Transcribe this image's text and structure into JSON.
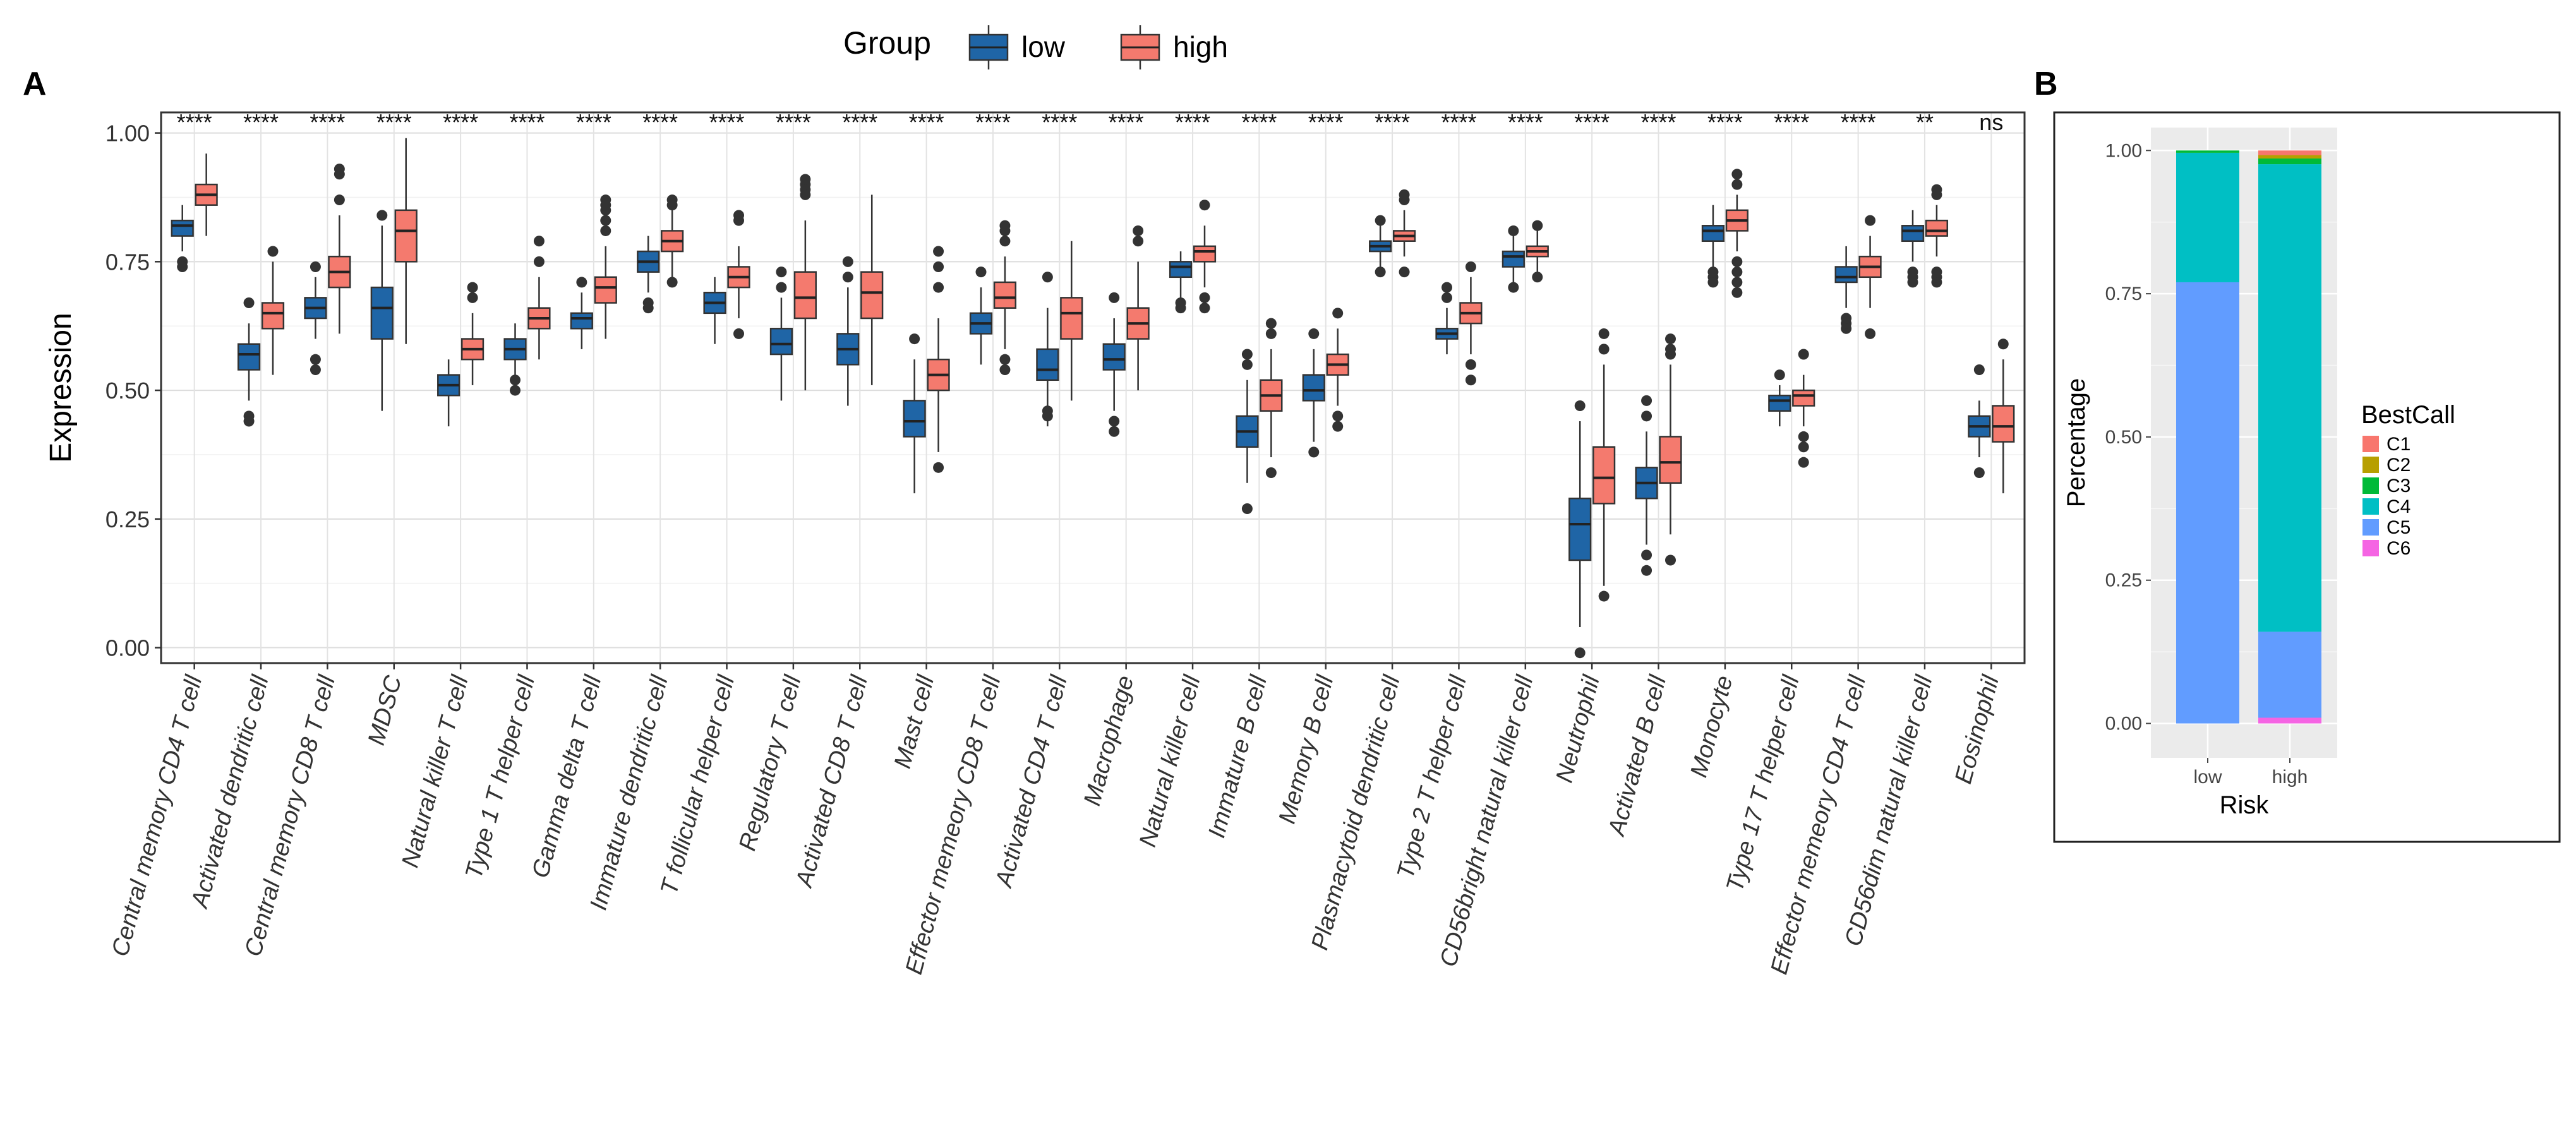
{
  "panels": {
    "a_label": "A",
    "b_label": "B"
  },
  "chart_data": [
    {
      "type": "boxplot",
      "panel": "A",
      "ylabel": "Expression",
      "xlabel": "",
      "ylim": [
        -0.03,
        1.04
      ],
      "yticks": [
        0.0,
        0.25,
        0.5,
        0.75,
        1.0
      ],
      "ytick_labels": [
        "0.00",
        "0.25",
        "0.50",
        "0.75",
        "1.00"
      ],
      "grid": true,
      "legend": {
        "title": "Group",
        "position": "top",
        "entries": [
          {
            "name": "low",
            "color": "#1f65a6"
          },
          {
            "name": "high",
            "color": "#f47a6e"
          }
        ]
      },
      "categories": [
        "Central memory CD4 T cell",
        "Activated dendritic cell",
        "Central memory CD8 T cell",
        "MDSC",
        "Natural killer T cell",
        "Type 1 T helper cell",
        "Gamma delta T cell",
        "Immature dendritic cell",
        "T follicular helper cell",
        "Regulatory T cell",
        "Activated CD8 T cell",
        "Mast cell",
        "Effector memeory CD8 T cell",
        "Activated CD4 T cell",
        "Macrophage",
        "Natural killer cell",
        "Immature  B cell",
        "Memory B cell",
        "Plasmacytoid dendritic cell",
        "Type 2 T helper cell",
        "CD56bright natural killer cell",
        "Neutrophil",
        "Activated B cell",
        "Monocyte",
        "Type 17 T helper cell",
        "Effector memeory CD4 T cell",
        "CD56dim natural killer cell",
        "Eosinophil"
      ],
      "significance": [
        "****",
        "****",
        "****",
        "****",
        "****",
        "****",
        "****",
        "****",
        "****",
        "****",
        "****",
        "****",
        "****",
        "****",
        "****",
        "****",
        "****",
        "****",
        "****",
        "****",
        "****",
        "****",
        "****",
        "****",
        "****",
        "****",
        "**",
        "ns"
      ],
      "series": [
        {
          "name": "low",
          "boxes": [
            {
              "q1": 0.8,
              "median": 0.82,
              "q3": 0.83,
              "wl": 0.77,
              "wh": 0.86,
              "out": [
                0.75,
                0.74
              ]
            },
            {
              "q1": 0.54,
              "median": 0.57,
              "q3": 0.59,
              "wl": 0.48,
              "wh": 0.63,
              "out": [
                0.44,
                0.45,
                0.67
              ]
            },
            {
              "q1": 0.64,
              "median": 0.66,
              "q3": 0.68,
              "wl": 0.6,
              "wh": 0.72,
              "out": [
                0.54,
                0.56,
                0.74
              ]
            },
            {
              "q1": 0.6,
              "median": 0.66,
              "q3": 0.7,
              "wl": 0.46,
              "wh": 0.82,
              "out": [
                0.84
              ]
            },
            {
              "q1": 0.49,
              "median": 0.51,
              "q3": 0.53,
              "wl": 0.43,
              "wh": 0.56,
              "out": []
            },
            {
              "q1": 0.56,
              "median": 0.58,
              "q3": 0.6,
              "wl": 0.51,
              "wh": 0.63,
              "out": [
                0.5,
                0.52
              ]
            },
            {
              "q1": 0.62,
              "median": 0.64,
              "q3": 0.65,
              "wl": 0.58,
              "wh": 0.69,
              "out": [
                0.71
              ]
            },
            {
              "q1": 0.73,
              "median": 0.75,
              "q3": 0.77,
              "wl": 0.69,
              "wh": 0.8,
              "out": [
                0.67,
                0.66
              ]
            },
            {
              "q1": 0.65,
              "median": 0.67,
              "q3": 0.69,
              "wl": 0.59,
              "wh": 0.72,
              "out": []
            },
            {
              "q1": 0.57,
              "median": 0.59,
              "q3": 0.62,
              "wl": 0.48,
              "wh": 0.68,
              "out": [
                0.7,
                0.73
              ]
            },
            {
              "q1": 0.55,
              "median": 0.58,
              "q3": 0.61,
              "wl": 0.47,
              "wh": 0.7,
              "out": [
                0.72,
                0.75
              ]
            },
            {
              "q1": 0.41,
              "median": 0.44,
              "q3": 0.48,
              "wl": 0.3,
              "wh": 0.56,
              "out": [
                0.6
              ]
            },
            {
              "q1": 0.61,
              "median": 0.63,
              "q3": 0.65,
              "wl": 0.55,
              "wh": 0.7,
              "out": [
                0.73
              ]
            },
            {
              "q1": 0.52,
              "median": 0.54,
              "q3": 0.58,
              "wl": 0.43,
              "wh": 0.66,
              "out": [
                0.46,
                0.45,
                0.72
              ]
            },
            {
              "q1": 0.54,
              "median": 0.56,
              "q3": 0.59,
              "wl": 0.46,
              "wh": 0.64,
              "out": [
                0.68,
                0.44,
                0.42
              ]
            },
            {
              "q1": 0.72,
              "median": 0.74,
              "q3": 0.75,
              "wl": 0.68,
              "wh": 0.77,
              "out": [
                0.66,
                0.67
              ]
            },
            {
              "q1": 0.39,
              "median": 0.42,
              "q3": 0.45,
              "wl": 0.32,
              "wh": 0.52,
              "out": [
                0.55,
                0.57,
                0.27
              ]
            },
            {
              "q1": 0.48,
              "median": 0.5,
              "q3": 0.53,
              "wl": 0.4,
              "wh": 0.58,
              "out": [
                0.61,
                0.38
              ]
            },
            {
              "q1": 0.77,
              "median": 0.78,
              "q3": 0.79,
              "wl": 0.74,
              "wh": 0.82,
              "out": [
                0.83,
                0.73
              ]
            },
            {
              "q1": 0.6,
              "median": 0.61,
              "q3": 0.62,
              "wl": 0.57,
              "wh": 0.66,
              "out": [
                0.68,
                0.7
              ]
            },
            {
              "q1": 0.74,
              "median": 0.76,
              "q3": 0.77,
              "wl": 0.71,
              "wh": 0.8,
              "out": [
                0.7,
                0.81
              ]
            },
            {
              "q1": 0.17,
              "median": 0.24,
              "q3": 0.29,
              "wl": 0.04,
              "wh": 0.44,
              "out": [
                0.47,
                -0.01
              ]
            },
            {
              "q1": 0.29,
              "median": 0.32,
              "q3": 0.35,
              "wl": 0.2,
              "wh": 0.42,
              "out": [
                0.15,
                0.18,
                0.45,
                0.48
              ]
            },
            {
              "q1": 0.79,
              "median": 0.81,
              "q3": 0.82,
              "wl": 0.74,
              "wh": 0.86,
              "out": [
                0.72,
                0.71,
                0.73
              ]
            },
            {
              "q1": 0.46,
              "median": 0.48,
              "q3": 0.49,
              "wl": 0.43,
              "wh": 0.51,
              "out": [
                0.53
              ]
            },
            {
              "q1": 0.71,
              "median": 0.72,
              "q3": 0.74,
              "wl": 0.66,
              "wh": 0.78,
              "out": [
                0.62,
                0.63,
                0.64
              ]
            },
            {
              "q1": 0.79,
              "median": 0.81,
              "q3": 0.82,
              "wl": 0.75,
              "wh": 0.85,
              "out": [
                0.71,
                0.72,
                0.73
              ]
            },
            {
              "q1": 0.41,
              "median": 0.43,
              "q3": 0.45,
              "wl": 0.37,
              "wh": 0.48,
              "out": [
                0.34,
                0.54
              ]
            }
          ]
        },
        {
          "name": "high",
          "boxes": [
            {
              "q1": 0.86,
              "median": 0.88,
              "q3": 0.9,
              "wl": 0.8,
              "wh": 0.96,
              "out": []
            },
            {
              "q1": 0.62,
              "median": 0.65,
              "q3": 0.67,
              "wl": 0.53,
              "wh": 0.75,
              "out": [
                0.77
              ]
            },
            {
              "q1": 0.7,
              "median": 0.73,
              "q3": 0.76,
              "wl": 0.61,
              "wh": 0.84,
              "out": [
                0.87,
                0.92,
                0.93
              ]
            },
            {
              "q1": 0.75,
              "median": 0.81,
              "q3": 0.85,
              "wl": 0.59,
              "wh": 0.99,
              "out": []
            },
            {
              "q1": 0.56,
              "median": 0.58,
              "q3": 0.6,
              "wl": 0.51,
              "wh": 0.65,
              "out": [
                0.68,
                0.7
              ]
            },
            {
              "q1": 0.62,
              "median": 0.64,
              "q3": 0.66,
              "wl": 0.56,
              "wh": 0.72,
              "out": [
                0.75,
                0.79
              ]
            },
            {
              "q1": 0.67,
              "median": 0.7,
              "q3": 0.72,
              "wl": 0.6,
              "wh": 0.78,
              "out": [
                0.81,
                0.83,
                0.85,
                0.86,
                0.87
              ]
            },
            {
              "q1": 0.77,
              "median": 0.79,
              "q3": 0.81,
              "wl": 0.72,
              "wh": 0.85,
              "out": [
                0.86,
                0.87,
                0.71
              ]
            },
            {
              "q1": 0.7,
              "median": 0.72,
              "q3": 0.74,
              "wl": 0.64,
              "wh": 0.78,
              "out": [
                0.61,
                0.83,
                0.84
              ]
            },
            {
              "q1": 0.64,
              "median": 0.68,
              "q3": 0.73,
              "wl": 0.5,
              "wh": 0.83,
              "out": [
                0.88,
                0.89,
                0.9,
                0.91
              ]
            },
            {
              "q1": 0.64,
              "median": 0.69,
              "q3": 0.73,
              "wl": 0.51,
              "wh": 0.88,
              "out": []
            },
            {
              "q1": 0.5,
              "median": 0.53,
              "q3": 0.56,
              "wl": 0.38,
              "wh": 0.64,
              "out": [
                0.7,
                0.74,
                0.77,
                0.35
              ]
            },
            {
              "q1": 0.66,
              "median": 0.68,
              "q3": 0.71,
              "wl": 0.58,
              "wh": 0.76,
              "out": [
                0.54,
                0.56,
                0.79,
                0.81,
                0.82
              ]
            },
            {
              "q1": 0.6,
              "median": 0.65,
              "q3": 0.68,
              "wl": 0.48,
              "wh": 0.79,
              "out": []
            },
            {
              "q1": 0.6,
              "median": 0.63,
              "q3": 0.66,
              "wl": 0.5,
              "wh": 0.75,
              "out": [
                0.79,
                0.81
              ]
            },
            {
              "q1": 0.75,
              "median": 0.77,
              "q3": 0.78,
              "wl": 0.7,
              "wh": 0.82,
              "out": [
                0.86,
                0.68,
                0.66
              ]
            },
            {
              "q1": 0.46,
              "median": 0.49,
              "q3": 0.52,
              "wl": 0.37,
              "wh": 0.58,
              "out": [
                0.61,
                0.63,
                0.34
              ]
            },
            {
              "q1": 0.53,
              "median": 0.55,
              "q3": 0.57,
              "wl": 0.47,
              "wh": 0.62,
              "out": [
                0.65,
                0.45,
                0.43
              ]
            },
            {
              "q1": 0.79,
              "median": 0.8,
              "q3": 0.81,
              "wl": 0.76,
              "wh": 0.85,
              "out": [
                0.87,
                0.88,
                0.73
              ]
            },
            {
              "q1": 0.63,
              "median": 0.65,
              "q3": 0.67,
              "wl": 0.57,
              "wh": 0.72,
              "out": [
                0.55,
                0.52,
                0.74
              ]
            },
            {
              "q1": 0.76,
              "median": 0.77,
              "q3": 0.78,
              "wl": 0.73,
              "wh": 0.81,
              "out": [
                0.82,
                0.72
              ]
            },
            {
              "q1": 0.28,
              "median": 0.33,
              "q3": 0.39,
              "wl": 0.12,
              "wh": 0.55,
              "out": [
                0.58,
                0.61,
                0.1
              ]
            },
            {
              "q1": 0.32,
              "median": 0.36,
              "q3": 0.41,
              "wl": 0.22,
              "wh": 0.55,
              "out": [
                0.57,
                0.58,
                0.6,
                0.17
              ]
            },
            {
              "q1": 0.81,
              "median": 0.83,
              "q3": 0.85,
              "wl": 0.77,
              "wh": 0.88,
              "out": [
                0.69,
                0.71,
                0.73,
                0.75,
                0.9,
                0.92
              ]
            },
            {
              "q1": 0.47,
              "median": 0.49,
              "q3": 0.5,
              "wl": 0.43,
              "wh": 0.53,
              "out": [
                0.41,
                0.39,
                0.36,
                0.57
              ]
            },
            {
              "q1": 0.72,
              "median": 0.74,
              "q3": 0.76,
              "wl": 0.66,
              "wh": 0.8,
              "out": [
                0.61,
                0.83
              ]
            },
            {
              "q1": 0.8,
              "median": 0.81,
              "q3": 0.83,
              "wl": 0.76,
              "wh": 0.86,
              "out": [
                0.71,
                0.72,
                0.73,
                0.88,
                0.89
              ]
            },
            {
              "q1": 0.4,
              "median": 0.43,
              "q3": 0.47,
              "wl": 0.3,
              "wh": 0.56,
              "out": [
                0.59
              ]
            }
          ]
        }
      ]
    },
    {
      "type": "stacked_bar",
      "panel": "B",
      "xlabel": "Risk",
      "ylabel": "Percentage",
      "categories": [
        "low",
        "high"
      ],
      "ylim": [
        0,
        1.0
      ],
      "yticks": [
        0.0,
        0.25,
        0.5,
        0.75,
        1.0
      ],
      "ytick_labels": [
        "0.00",
        "0.25",
        "0.50",
        "0.75",
        "1.00"
      ],
      "grid": true,
      "legend": {
        "title": "BestCall",
        "position": "right"
      },
      "series": [
        {
          "name": "C1",
          "color": "#f8766d",
          "values": [
            0.0,
            0.008
          ]
        },
        {
          "name": "C2",
          "color": "#b79f00",
          "values": [
            0.0,
            0.006
          ]
        },
        {
          "name": "C3",
          "color": "#00ba38",
          "values": [
            0.004,
            0.01
          ]
        },
        {
          "name": "C4",
          "color": "#00bfc4",
          "values": [
            0.226,
            0.816
          ]
        },
        {
          "name": "C5",
          "color": "#619cff",
          "values": [
            0.77,
            0.15
          ]
        },
        {
          "name": "C6",
          "color": "#f564e3",
          "values": [
            0.0,
            0.01
          ]
        }
      ]
    }
  ]
}
